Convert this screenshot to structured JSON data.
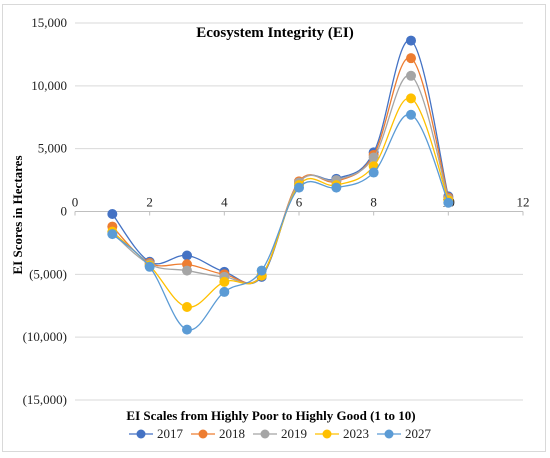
{
  "chart_data": {
    "type": "line",
    "title": "Ecosystem Integrity (EI)",
    "xlabel": "EI Scales from Highly Poor to Highly Good (1 to 10)",
    "ylabel": "EI Scores in Hectares",
    "xlim": [
      0,
      12
    ],
    "ylim": [
      -15000,
      15000
    ],
    "x_ticks": [
      "0",
      "2",
      "4",
      "6",
      "8",
      "10",
      "12"
    ],
    "y_ticks": [
      "15,000",
      "10,000",
      "5,000",
      "0",
      "(5,000)",
      "(10,000)",
      "(15,000)"
    ],
    "grid": "horizontal",
    "legend_position": "bottom",
    "smooth": true,
    "x": [
      1,
      2,
      3,
      4,
      5,
      6,
      7,
      8,
      9,
      10
    ],
    "series": [
      {
        "name": "2017",
        "color": "#4472c4",
        "values": [
          -200,
          -4000,
          -3500,
          -4800,
          -5200,
          2300,
          2600,
          4700,
          13600,
          1200
        ]
      },
      {
        "name": "2018",
        "color": "#ed7d31",
        "values": [
          -1200,
          -4100,
          -4200,
          -5000,
          -5100,
          2400,
          2400,
          4500,
          12200,
          1100
        ]
      },
      {
        "name": "2019",
        "color": "#a5a5a5",
        "values": [
          -1700,
          -4200,
          -4700,
          -5200,
          -5100,
          2300,
          2500,
          4300,
          10800,
          1000
        ]
      },
      {
        "name": "2023",
        "color": "#ffc000",
        "values": [
          -1600,
          -4300,
          -7600,
          -5600,
          -5100,
          2100,
          2100,
          3600,
          9000,
          900
        ]
      },
      {
        "name": "2027",
        "color": "#5b9bd5",
        "values": [
          -1800,
          -4400,
          -9400,
          -6400,
          -4700,
          1900,
          1900,
          3100,
          7700,
          700
        ]
      }
    ]
  }
}
